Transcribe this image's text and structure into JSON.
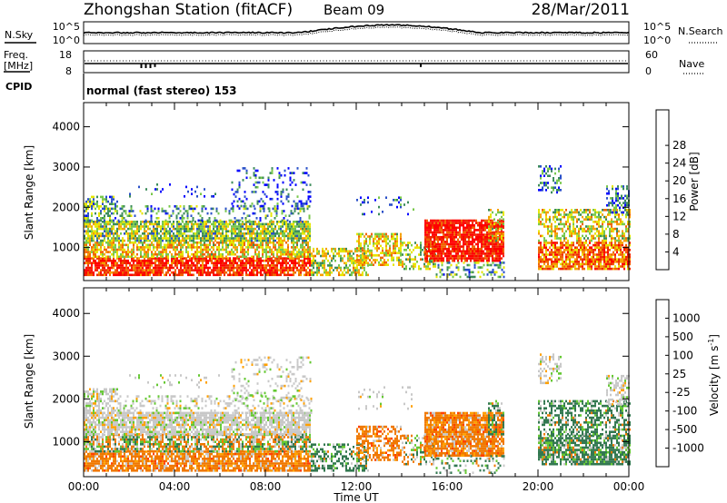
{
  "header": {
    "station": "Zhongshan Station (fitACF)",
    "beam": "Beam 09",
    "date": "28/Mar/2011"
  },
  "top_panels": {
    "nsky": {
      "label": "N.Sky",
      "ticks": [
        "10^5",
        "10^0"
      ]
    },
    "nsearch": {
      "label": "N.Search",
      "ticks": [
        "10^5",
        "10^0"
      ]
    },
    "freq": {
      "label_line1": "Freq.",
      "label_line2": "[MHz]",
      "ticks": [
        "18",
        "8"
      ]
    },
    "nave": {
      "label": "Nave",
      "ticks": [
        "60",
        "0"
      ]
    },
    "cpid": {
      "label": "CPID",
      "text": "normal (fast stereo) 153"
    }
  },
  "colors": {
    "power_scale": [
      "#0000ff",
      "#2a50c8",
      "#3c8c5a",
      "#78c84b",
      "#e6e600",
      "#f5a000",
      "#f06400",
      "#f02800",
      "#ff0000"
    ],
    "velocity_scale": [
      "#1e3ccd",
      "#3c64c8",
      "#327850",
      "#64c832",
      "#c8c8c8",
      "#ffa000",
      "#f07800",
      "#ff4000",
      "#ff0000"
    ]
  },
  "chart_data": [
    {
      "type": "heatmap",
      "name": "power",
      "ylabel": "Slant Range [km]",
      "ylim": [
        180,
        4600
      ],
      "yticks": [
        "1000",
        "2000",
        "3000",
        "4000"
      ],
      "yticks_values": [
        1000,
        2000,
        3000,
        4000
      ],
      "colorbar": {
        "label": "Power [dB]",
        "ticks": [
          "4",
          "8",
          "12",
          "16",
          "20",
          "24",
          "28"
        ],
        "range": [
          0,
          32
        ]
      },
      "grid": false
    },
    {
      "type": "heatmap",
      "name": "velocity",
      "ylabel": "Slant Range [km]",
      "ylim": [
        180,
        4600
      ],
      "yticks": [
        "1000",
        "2000",
        "3000",
        "4000"
      ],
      "yticks_values": [
        1000,
        2000,
        3000,
        4000
      ],
      "colorbar": {
        "label_main": "Velocity [m s",
        "label_sup": "-1",
        "label_end": "]",
        "ticks": [
          "1000",
          "500",
          "100",
          "25",
          "-25",
          "-100",
          "-500",
          "-1000"
        ]
      },
      "grid": false
    }
  ],
  "xaxis": {
    "label": "Time UT",
    "ticks": [
      "00:00",
      "04:00",
      "08:00",
      "12:00",
      "16:00",
      "20:00",
      "00:00"
    ],
    "range_hours": [
      0,
      24
    ]
  }
}
